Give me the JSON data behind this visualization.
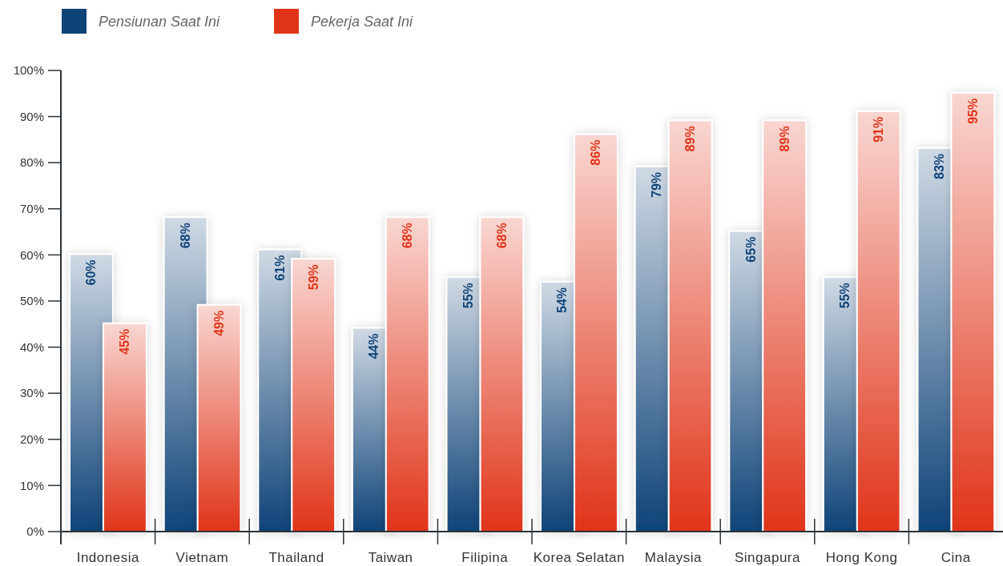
{
  "chart_data": {
    "type": "bar",
    "categories": [
      "Indonesia",
      "Vietnam",
      "Thailand",
      "Taiwan",
      "Filipina",
      "Korea Selatan",
      "Malaysia",
      "Singapura",
      "Hong Kong",
      "Cina"
    ],
    "series": [
      {
        "name": "Pensiunan Saat Ini",
        "color": "#0e4378",
        "values": [
          60,
          68,
          61,
          44,
          55,
          54,
          79,
          65,
          55,
          83
        ],
        "value_labels": [
          "60%",
          "68%",
          "61%",
          "44%",
          "55%",
          "54%",
          "79%",
          "65%",
          "55%",
          "83%"
        ]
      },
      {
        "name": "Pekerja Saat Ini",
        "color": "#e03419",
        "values": [
          45,
          49,
          59,
          68,
          68,
          86,
          89,
          89,
          91,
          95
        ],
        "value_labels": [
          "45%",
          "49%",
          "59%",
          "68%",
          "68%",
          "86%",
          "89%",
          "89%",
          "91%",
          "95%"
        ]
      }
    ],
    "ylim": [
      0,
      100
    ],
    "yticks": [
      {
        "value": 0,
        "label": "0%"
      },
      {
        "value": 10,
        "label": "10%"
      },
      {
        "value": 20,
        "label": "20%"
      },
      {
        "value": 30,
        "label": "30%"
      },
      {
        "value": 40,
        "label": "40%"
      },
      {
        "value": 50,
        "label": "50%"
      },
      {
        "value": 60,
        "label": "60%"
      },
      {
        "value": 70,
        "label": "70%"
      },
      {
        "value": 80,
        "label": "80%"
      },
      {
        "value": 90,
        "label": "90%"
      },
      {
        "value": 100,
        "label": "100%"
      }
    ],
    "grid": false,
    "legend": "top left"
  }
}
